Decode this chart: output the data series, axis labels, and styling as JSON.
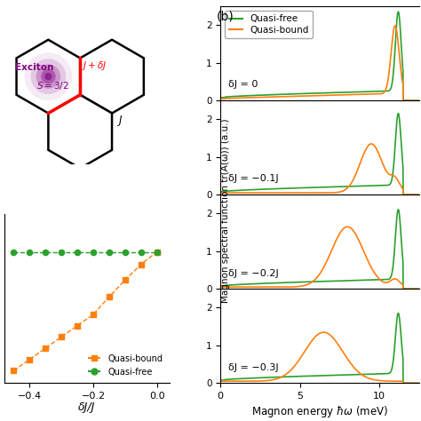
{
  "fig_width": 4.74,
  "fig_height": 4.74,
  "dpi": 100,
  "panel_b_label": "(b)",
  "legend_labels": [
    "Quasi-free",
    "Quasi-bound"
  ],
  "legend_colors": [
    "#2ca02c",
    "#ff7f0e"
  ],
  "delta_J_labels": [
    "δJ = 0",
    "δJ = −0.1J",
    "δJ = −0.2J",
    "δJ = −0.3J"
  ],
  "ylabel": "Magnon spectral function tr(A(ω)) (a.u.)",
  "green_color": "#2ca02c",
  "orange_color": "#ff7f0e",
  "background_color": "#ffffff",
  "xlim": [
    0,
    12.5
  ],
  "ylim": [
    0,
    2.5
  ],
  "yticks": [
    0,
    1,
    2
  ],
  "xticks": [
    0,
    5,
    10
  ],
  "scatter_x": [
    -0.45,
    -0.4,
    -0.35,
    -0.3,
    -0.25,
    -0.2,
    -0.15,
    -0.1,
    -0.05,
    0.0
  ],
  "scatter_orange_y": [
    0.2,
    0.38,
    0.56,
    0.74,
    0.92,
    1.1,
    1.38,
    1.65,
    1.9,
    2.1
  ],
  "scatter_green_y": [
    2.1,
    2.1,
    2.1,
    2.1,
    2.1,
    2.1,
    2.1,
    2.1,
    2.1,
    2.1
  ],
  "scatter_xlim": [
    -0.48,
    0.04
  ],
  "scatter_ylim": [
    0.0,
    2.7
  ],
  "scatter_xticks": [
    -0.4,
    -0.2,
    0.0
  ],
  "scatter_xlabel": "δJ/J"
}
